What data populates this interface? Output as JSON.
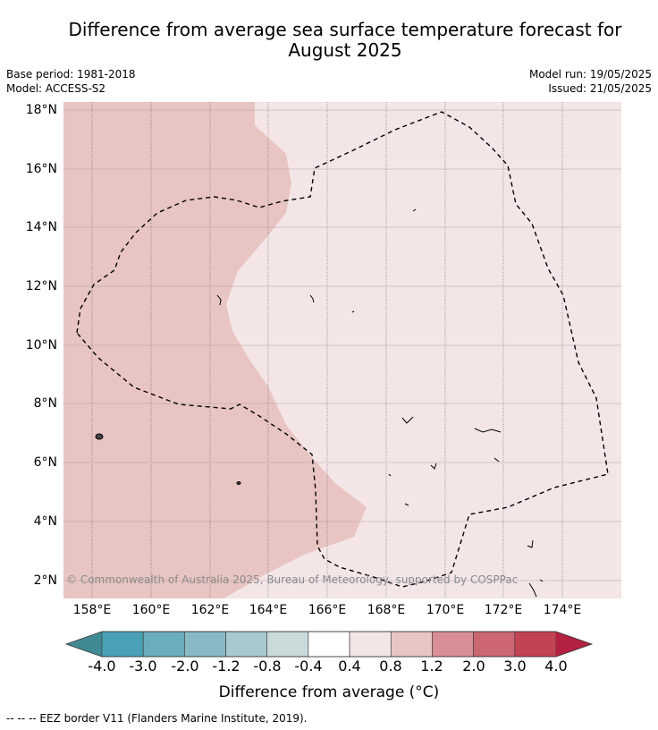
{
  "title": "Difference from average sea surface temperature forecast for August 2025",
  "base_period": "Base period: 1981-2018",
  "model": "Model: ACCESS-S2",
  "model_run": "Model run: 19/05/2025",
  "issued": "Issued: 21/05/2025",
  "copyright": "© Commonwealth of Australia 2025, Bureau of Meteorology, supported by COSPPac",
  "lat_ticks": [
    "18°N",
    "16°N",
    "14°N",
    "12°N",
    "10°N",
    "8°N",
    "6°N",
    "4°N",
    "2°N"
  ],
  "lon_ticks": [
    "158°E",
    "160°E",
    "162°E",
    "164°E",
    "166°E",
    "168°E",
    "170°E",
    "172°E",
    "174°E"
  ],
  "colorbar": {
    "title": "Difference from average (°C)",
    "ticks": [
      "-4.0",
      "-3.0",
      "-2.0",
      "-1.2",
      "-0.8",
      "-0.4",
      "0.4",
      "0.8",
      "1.2",
      "2.0",
      "3.0",
      "4.0"
    ],
    "colors": [
      "#408a94",
      "#4aa1b5",
      "#6aadbc",
      "#8ab9c6",
      "#a8c9ce",
      "#cadadb",
      "#ffffff",
      "#f4e6e6",
      "#e8c5c2",
      "#d88f97",
      "#cb6672",
      "#c24353",
      "#b42040"
    ]
  },
  "map_regions": [
    {
      "name": "anomaly 0.8 to 1.2",
      "color": "#e8c5c2"
    },
    {
      "name": "anomaly 0.4 to 0.8",
      "color": "#f4e6e6"
    }
  ],
  "footnote": "-- -- -- EEZ border V11 (Flanders Marine Institute, 2019)."
}
